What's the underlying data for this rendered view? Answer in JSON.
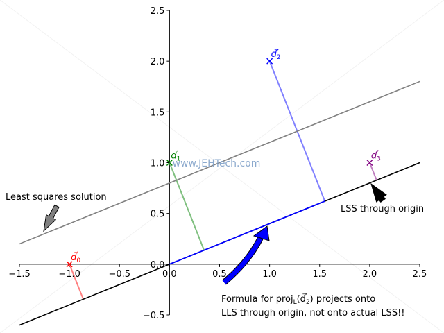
{
  "chart_data": {
    "type": "line",
    "xlim": [
      -1.5,
      2.5
    ],
    "ylim": [
      -0.5,
      2.5
    ],
    "x_ticks": [
      -1.5,
      -1.0,
      -0.5,
      0.0,
      0.5,
      1.0,
      1.5,
      2.0,
      2.5
    ],
    "x_tick_labels": [
      "−1.5",
      "−1.0",
      "−0.5",
      "0.0",
      "0.5",
      "1.0",
      "1.5",
      "2.0",
      "2.5"
    ],
    "y_ticks": [
      -0.5,
      0.0,
      0.5,
      1.0,
      1.5,
      2.0,
      2.5
    ],
    "y_tick_labels": [
      "−0.5",
      "0.0",
      "0.5",
      "1.0",
      "1.5",
      "2.0",
      "2.5"
    ],
    "axes_through_origin": true,
    "grid": false,
    "points": [
      {
        "id": "d0",
        "label": "d⃗",
        "sub": "0",
        "x": -1.0,
        "y": 0.0,
        "color": "#ff0000",
        "foot": [
          -0.862,
          -0.345
        ],
        "foot_color": "#ff8080"
      },
      {
        "id": "d1",
        "label": "d⃗",
        "sub": "1",
        "x": 0.0,
        "y": 1.0,
        "color": "#008000",
        "foot": [
          0.345,
          0.138
        ],
        "foot_color": "#80c080"
      },
      {
        "id": "d2",
        "label": "d⃗",
        "sub": "2",
        "x": 1.0,
        "y": 2.0,
        "color": "#0000ff",
        "foot": [
          1.552,
          0.621
        ],
        "foot_color": "#8080ff"
      },
      {
        "id": "d3",
        "label": "d⃗",
        "sub": "3",
        "x": 2.0,
        "y": 1.0,
        "color": "#800080",
        "foot": [
          2.069,
          0.828
        ],
        "foot_color": "#c080c0"
      }
    ],
    "lines": [
      {
        "name": "Least squares solution",
        "slope": 0.4,
        "intercept": 0.8,
        "x": [
          -1.5,
          2.5
        ],
        "color": "#808080"
      },
      {
        "name": "LSS through origin",
        "slope": 0.4,
        "intercept": 0.0,
        "x": [
          -1.5,
          2.5
        ],
        "color": "#000000"
      },
      {
        "name": "projection",
        "x": [
          0.0,
          1.552
        ],
        "y": [
          0.0,
          0.621
        ],
        "color": "#0000ff"
      }
    ],
    "annotations": [
      {
        "id": "lss",
        "text": "Least squares solution",
        "arrow_color": "#808080"
      },
      {
        "id": "origin",
        "text": "LSS through origin",
        "arrow_color": "#000000"
      },
      {
        "id": "formula",
        "lines": [
          "Formula for proj",
          "(d⃗",
          ") projects onto",
          "LLS through origin, not onto actual LSS!!"
        ],
        "sub_L": "L",
        "sub_2": "2",
        "arrow_color": "#0000ff"
      }
    ],
    "watermark": "www.JEHTech.com"
  }
}
